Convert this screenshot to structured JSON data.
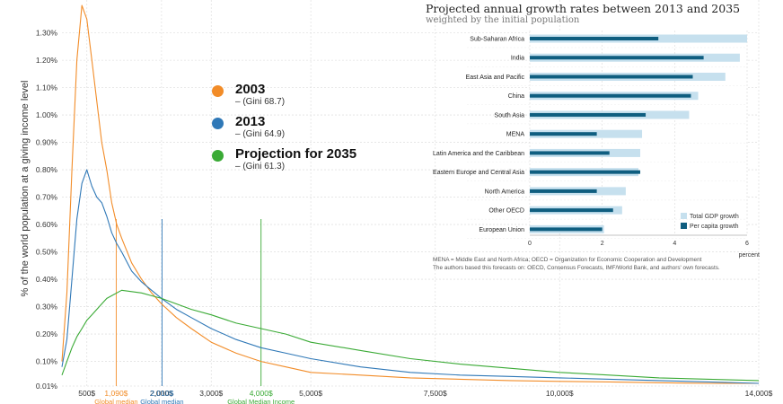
{
  "chart_data": [
    {
      "type": "line",
      "title": "",
      "xlabel": "",
      "ylabel": "% of the world population at a giving income level",
      "xlim": [
        0,
        14000
      ],
      "ylim": [
        0.01,
        1.42
      ],
      "x_ticks": [
        "500$",
        "2,000$",
        "3,000$",
        "5,000$",
        "7,500$",
        "10,000$",
        "14,000$"
      ],
      "x_tick_values": [
        500,
        2000,
        3000,
        5000,
        7500,
        10000,
        14000
      ],
      "y_ticks": [
        "0.01%",
        "0.10%",
        "0.20%",
        "0.30%",
        "0.40%",
        "0.50%",
        "0.60%",
        "0.70%",
        "0.80%",
        "0.90%",
        "1.00%",
        "1.10%",
        "1.20%",
        "1.30%"
      ],
      "y_tick_values": [
        0.01,
        0.1,
        0.2,
        0.3,
        0.4,
        0.5,
        0.6,
        0.7,
        0.8,
        0.9,
        1.0,
        1.1,
        1.2,
        1.3
      ],
      "grid": true,
      "series": [
        {
          "name": "2003",
          "gini": "– (Gini 68.7)",
          "color": "#f28c28",
          "x": [
            0,
            100,
            200,
            300,
            400,
            500,
            600,
            700,
            800,
            900,
            1000,
            1100,
            1200,
            1400,
            1600,
            1800,
            2000,
            2300,
            2600,
            3000,
            3500,
            4000,
            4500,
            5000,
            6000,
            7000,
            8000,
            9000,
            10000,
            11000,
            12000,
            13000,
            14000
          ],
          "y": [
            0.1,
            0.35,
            0.8,
            1.2,
            1.4,
            1.35,
            1.2,
            1.05,
            0.9,
            0.8,
            0.68,
            0.6,
            0.55,
            0.46,
            0.4,
            0.35,
            0.31,
            0.26,
            0.22,
            0.17,
            0.13,
            0.1,
            0.08,
            0.06,
            0.05,
            0.04,
            0.035,
            0.03,
            0.027,
            0.025,
            0.022,
            0.02,
            0.02
          ]
        },
        {
          "name": "2013",
          "gini": "– (Gini 64.9)",
          "color": "#2f78b7",
          "x": [
            0,
            100,
            200,
            300,
            400,
            500,
            600,
            700,
            800,
            900,
            1000,
            1100,
            1200,
            1400,
            1600,
            1800,
            2000,
            2300,
            2600,
            3000,
            3500,
            4000,
            4500,
            5000,
            6000,
            7000,
            8000,
            9000,
            10000,
            11000,
            12000,
            13000,
            14000
          ],
          "y": [
            0.08,
            0.18,
            0.4,
            0.62,
            0.75,
            0.8,
            0.74,
            0.7,
            0.68,
            0.63,
            0.57,
            0.53,
            0.5,
            0.43,
            0.39,
            0.36,
            0.33,
            0.29,
            0.26,
            0.22,
            0.18,
            0.15,
            0.13,
            0.11,
            0.08,
            0.06,
            0.05,
            0.045,
            0.04,
            0.035,
            0.03,
            0.025,
            0.02
          ]
        },
        {
          "name": "Projection for 2035",
          "gini": "– (Gini 61.3)",
          "color": "#3aaa35",
          "x": [
            0,
            100,
            200,
            300,
            400,
            500,
            600,
            700,
            800,
            900,
            1000,
            1100,
            1200,
            1400,
            1600,
            1800,
            2000,
            2300,
            2600,
            3000,
            3500,
            4000,
            4500,
            5000,
            6000,
            7000,
            8000,
            9000,
            10000,
            11000,
            12000,
            13000,
            14000
          ],
          "y": [
            0.05,
            0.1,
            0.15,
            0.19,
            0.22,
            0.25,
            0.27,
            0.29,
            0.31,
            0.33,
            0.34,
            0.35,
            0.36,
            0.355,
            0.35,
            0.34,
            0.33,
            0.31,
            0.29,
            0.27,
            0.24,
            0.22,
            0.2,
            0.17,
            0.14,
            0.11,
            0.09,
            0.075,
            0.06,
            0.05,
            0.04,
            0.035,
            0.03
          ]
        }
      ],
      "annotations": [
        {
          "value_label": "1,090$",
          "caption": "Global median",
          "x": 1090,
          "color": "#f28c28"
        },
        {
          "value_label": "2,010$",
          "caption": "Global median",
          "x": 2010,
          "color": "#2f78b7"
        },
        {
          "value_label": "4,000$",
          "caption": "Global Median Income",
          "x": 4000,
          "color": "#3aaa35"
        }
      ]
    },
    {
      "type": "bar",
      "title": "Projected annual growth rates between 2013 and 2035",
      "subtitle": "weighted by the initial population",
      "xlabel": "percent",
      "xlim": [
        0,
        6
      ],
      "x_ticks": [
        "0",
        "2",
        "4",
        "6"
      ],
      "x_tick_values": [
        0,
        2,
        4,
        6
      ],
      "grid": true,
      "legend_position": "bottom-right",
      "categories": [
        "Sub-Saharan Africa",
        "India",
        "East Asia and Pacific",
        "China",
        "South Asia",
        "MENA",
        "Latin America and the Caribbean",
        "Eastern Europe and Central Asia",
        "North America",
        "Other OECD",
        "European Union"
      ],
      "series": [
        {
          "name": "Total GDP growth",
          "color": "#c6e0ee",
          "values": [
            6.0,
            5.8,
            5.4,
            4.65,
            4.4,
            3.1,
            3.05,
            3.0,
            2.65,
            2.55,
            2.05
          ]
        },
        {
          "name": "Per capita growth",
          "color": "#0f5e80",
          "values": [
            3.55,
            4.8,
            4.5,
            4.45,
            3.2,
            1.85,
            2.2,
            3.05,
            1.85,
            2.3,
            2.0
          ]
        }
      ],
      "notes": [
        "MENA = Middle East and North Africa; OECD = Organization for Economic Cooperation and Development",
        "The authors based this forecasts on: OECD, Consensus Forecasts, IMF/World Bank, and authors' own forecasts."
      ]
    }
  ]
}
